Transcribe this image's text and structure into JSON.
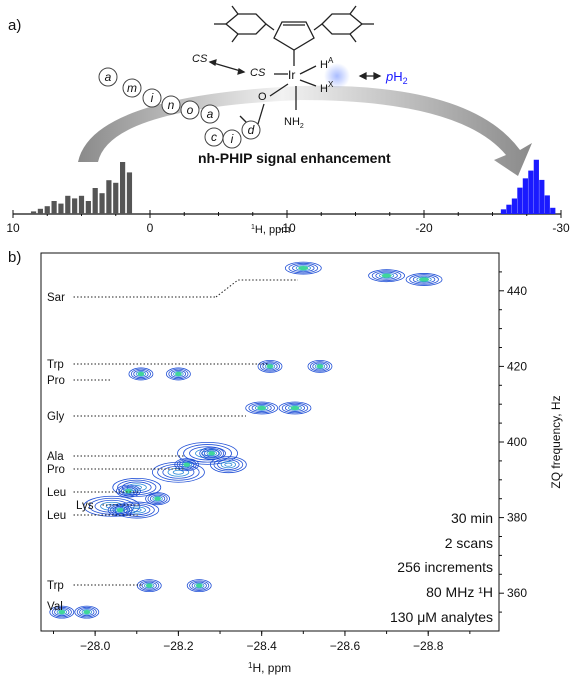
{
  "panel_a": {
    "label": "a)",
    "title": "nh-PHIP signal enhancement",
    "x_axis_label_prefix": "1",
    "x_axis_label": "H, ppm",
    "x_ticks": [
      "10",
      "0",
      "-10",
      "-20",
      "-30"
    ],
    "scheme": {
      "metal": "Ir",
      "cs_outer": "CS",
      "cs_inner": "CS",
      "ph2_prefix": "p",
      "ph2": "H",
      "ph2_sub": "2",
      "h": "H",
      "h_a_sup": "A",
      "h_x_sup": "X",
      "o_label": "O",
      "nh_label": "NH",
      "nh_sub": "2",
      "amino_acid_letters": [
        "a",
        "m",
        "i",
        "n",
        "o",
        "a",
        "c",
        "i",
        "d"
      ]
    },
    "colors": {
      "gray_bars": "#555555",
      "blue_bars": "#1a1aff",
      "arrow": "#999999"
    }
  },
  "panel_b": {
    "label": "b)",
    "x_axis_label_prefix": "1",
    "x_axis_label": "H, ppm",
    "y_axis_label": "ZQ frequency, Hz",
    "x_ticks": [
      "−28.0",
      "−28.2",
      "−28.4",
      "−28.6",
      "−28.8"
    ],
    "y_ticks": [
      "360",
      "380",
      "400",
      "420",
      "440"
    ],
    "analyte_labels": [
      "Sar",
      "Trp",
      "Pro",
      "Gly",
      "Ala",
      "Pro",
      "Leu",
      "Lys",
      "Leu",
      "Trp",
      "Val"
    ],
    "info_lines": [
      "30 min",
      "2 scans",
      "256 increments",
      "80 MHz ¹H",
      "130 μM analytes"
    ],
    "colors": {
      "contour_outer": "#1f4fd6",
      "contour_mid": "#2a8ad8",
      "contour_core": "#3fd69a"
    }
  },
  "chart_data": [
    {
      "type": "bar",
      "title": "nh-PHIP signal enhancement",
      "xlabel": "1H, ppm",
      "xlim": [
        10,
        -30
      ],
      "series": [
        {
          "values_x": [
            8.5,
            8.0,
            7.5,
            7.0,
            6.5,
            6.0,
            5.5,
            5.0,
            4.5,
            4.0,
            3.5,
            3.0,
            2.5,
            2.0,
            1.5
          ],
          "values": [
            1,
            2,
            3,
            5,
            4,
            7,
            6,
            7,
            5,
            10,
            8,
            13,
            12,
            20,
            16
          ]
        },
        {
          "values_x": [
            -25.8,
            -26.2,
            -26.6,
            -27.0,
            -27.4,
            -27.8,
            -28.2,
            -28.6,
            -29.0,
            -29.4
          ],
          "values": [
            3,
            6,
            10,
            17,
            23,
            28,
            35,
            22,
            12,
            4
          ]
        }
      ]
    },
    {
      "type": "heatmap",
      "xlabel": "1H, ppm",
      "ylabel": "ZQ frequency, Hz",
      "xlim": [
        -27.87,
        -28.97
      ],
      "ylim": [
        350,
        450
      ],
      "peaks": [
        {
          "label": "Sar",
          "x": -28.5,
          "y": 446
        },
        {
          "label": "Sar",
          "x": -28.7,
          "y": 444
        },
        {
          "label": "Sar",
          "x": -28.79,
          "y": 443
        },
        {
          "label": "Trp",
          "x": -28.42,
          "y": 420
        },
        {
          "label": "Trp",
          "x": -28.54,
          "y": 420
        },
        {
          "label": "Pro",
          "x": -28.11,
          "y": 418
        },
        {
          "label": "Pro",
          "x": -28.2,
          "y": 418
        },
        {
          "label": "Gly",
          "x": -28.4,
          "y": 409
        },
        {
          "label": "Gly",
          "x": -28.48,
          "y": 409
        },
        {
          "label": "Ala",
          "x": -28.28,
          "y": 397
        },
        {
          "label": "Pro",
          "x": -28.22,
          "y": 394
        },
        {
          "label": "Leu",
          "x": -28.08,
          "y": 387
        },
        {
          "label": "Lys",
          "x": -28.15,
          "y": 385
        },
        {
          "label": "Leu",
          "x": -28.06,
          "y": 382
        },
        {
          "label": "Trp",
          "x": -28.13,
          "y": 362
        },
        {
          "label": "Trp",
          "x": -28.25,
          "y": 362
        },
        {
          "label": "Val",
          "x": -27.92,
          "y": 355
        },
        {
          "label": "Val",
          "x": -27.98,
          "y": 355
        }
      ]
    }
  ]
}
